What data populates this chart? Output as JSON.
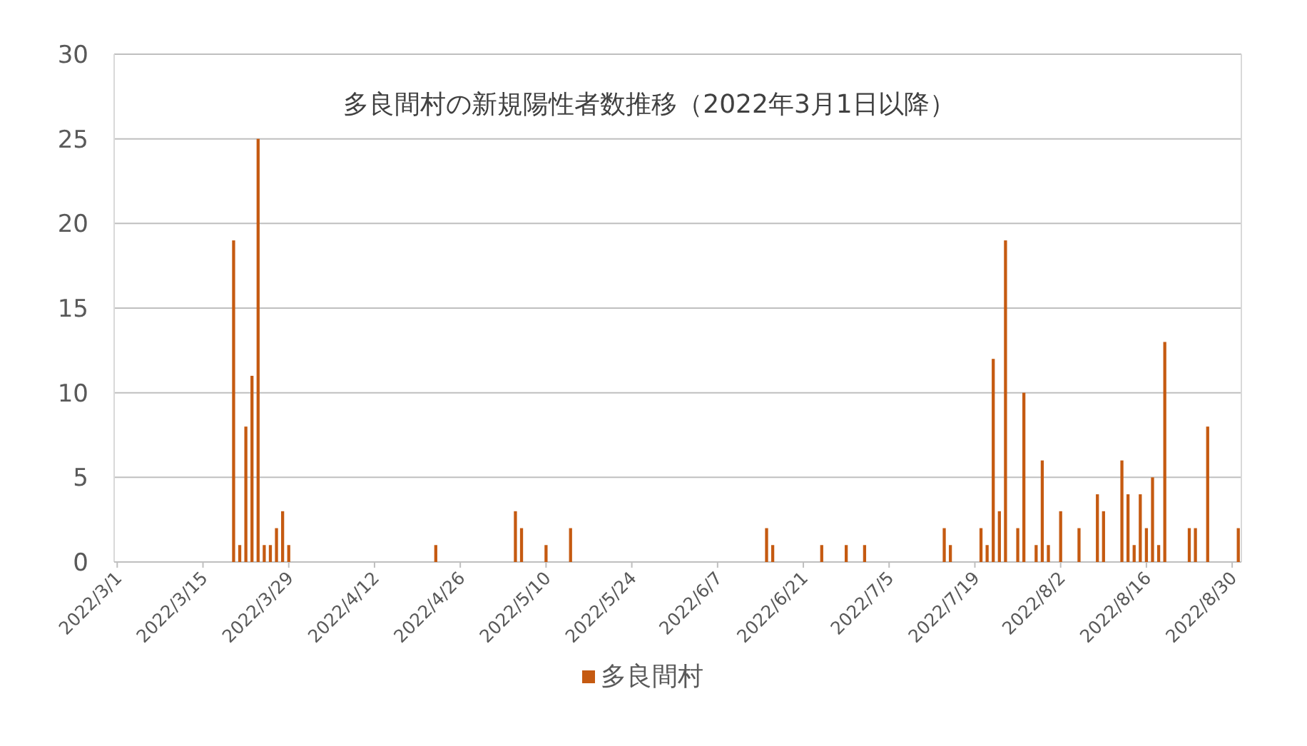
{
  "chart_data": {
    "type": "bar",
    "title": "多良間村の新規陽性者数推移（2022年3月1日以降）",
    "x": [
      "2022-03-20",
      "2022-03-21",
      "2022-03-22",
      "2022-03-23",
      "2022-03-24",
      "2022-03-25",
      "2022-03-26",
      "2022-03-27",
      "2022-03-28",
      "2022-03-29",
      "2022-04-22",
      "2022-05-05",
      "2022-05-06",
      "2022-05-10",
      "2022-05-14",
      "2022-06-15",
      "2022-06-16",
      "2022-06-24",
      "2022-06-28",
      "2022-07-01",
      "2022-07-14",
      "2022-07-15",
      "2022-07-20",
      "2022-07-21",
      "2022-07-22",
      "2022-07-23",
      "2022-07-24",
      "2022-07-26",
      "2022-07-27",
      "2022-07-29",
      "2022-07-30",
      "2022-07-31",
      "2022-08-02",
      "2022-08-05",
      "2022-08-08",
      "2022-08-09",
      "2022-08-12",
      "2022-08-13",
      "2022-08-14",
      "2022-08-15",
      "2022-08-16",
      "2022-08-17",
      "2022-08-18",
      "2022-08-19",
      "2022-08-23",
      "2022-08-24",
      "2022-08-26",
      "2022-08-31"
    ],
    "series": [
      {
        "name": "多良間村",
        "color": "#c55a11",
        "values": [
          19,
          1,
          8,
          11,
          25,
          1,
          1,
          2,
          3,
          1,
          1,
          3,
          2,
          1,
          2,
          2,
          1,
          1,
          1,
          1,
          2,
          1,
          2,
          1,
          12,
          3,
          19,
          2,
          10,
          1,
          6,
          1,
          3,
          2,
          4,
          3,
          6,
          4,
          1,
          4,
          2,
          5,
          1,
          13,
          2,
          2,
          8,
          2
        ]
      }
    ],
    "xlim": [
      "2022-02-28T12:00",
      "2022-08-31T12:00"
    ],
    "xticks": [
      {
        "value": "2022-03-01",
        "label": "2022/3/1"
      },
      {
        "value": "2022-03-15",
        "label": "2022/3/15"
      },
      {
        "value": "2022-03-29",
        "label": "2022/3/29"
      },
      {
        "value": "2022-04-12",
        "label": "2022/4/12"
      },
      {
        "value": "2022-04-26",
        "label": "2022/4/26"
      },
      {
        "value": "2022-05-10",
        "label": "2022/5/10"
      },
      {
        "value": "2022-05-24",
        "label": "2022/5/24"
      },
      {
        "value": "2022-06-07",
        "label": "2022/6/7"
      },
      {
        "value": "2022-06-21",
        "label": "2022/6/21"
      },
      {
        "value": "2022-07-05",
        "label": "2022/7/5"
      },
      {
        "value": "2022-07-19",
        "label": "2022/7/19"
      },
      {
        "value": "2022-08-02",
        "label": "2022/8/2"
      },
      {
        "value": "2022-08-16",
        "label": "2022/8/16"
      },
      {
        "value": "2022-08-30",
        "label": "2022/8/30"
      }
    ],
    "ylim": [
      0,
      30
    ],
    "yticks": [
      0,
      5,
      10,
      15,
      20,
      25,
      30
    ],
    "grid": "y",
    "legend": "bottom"
  }
}
